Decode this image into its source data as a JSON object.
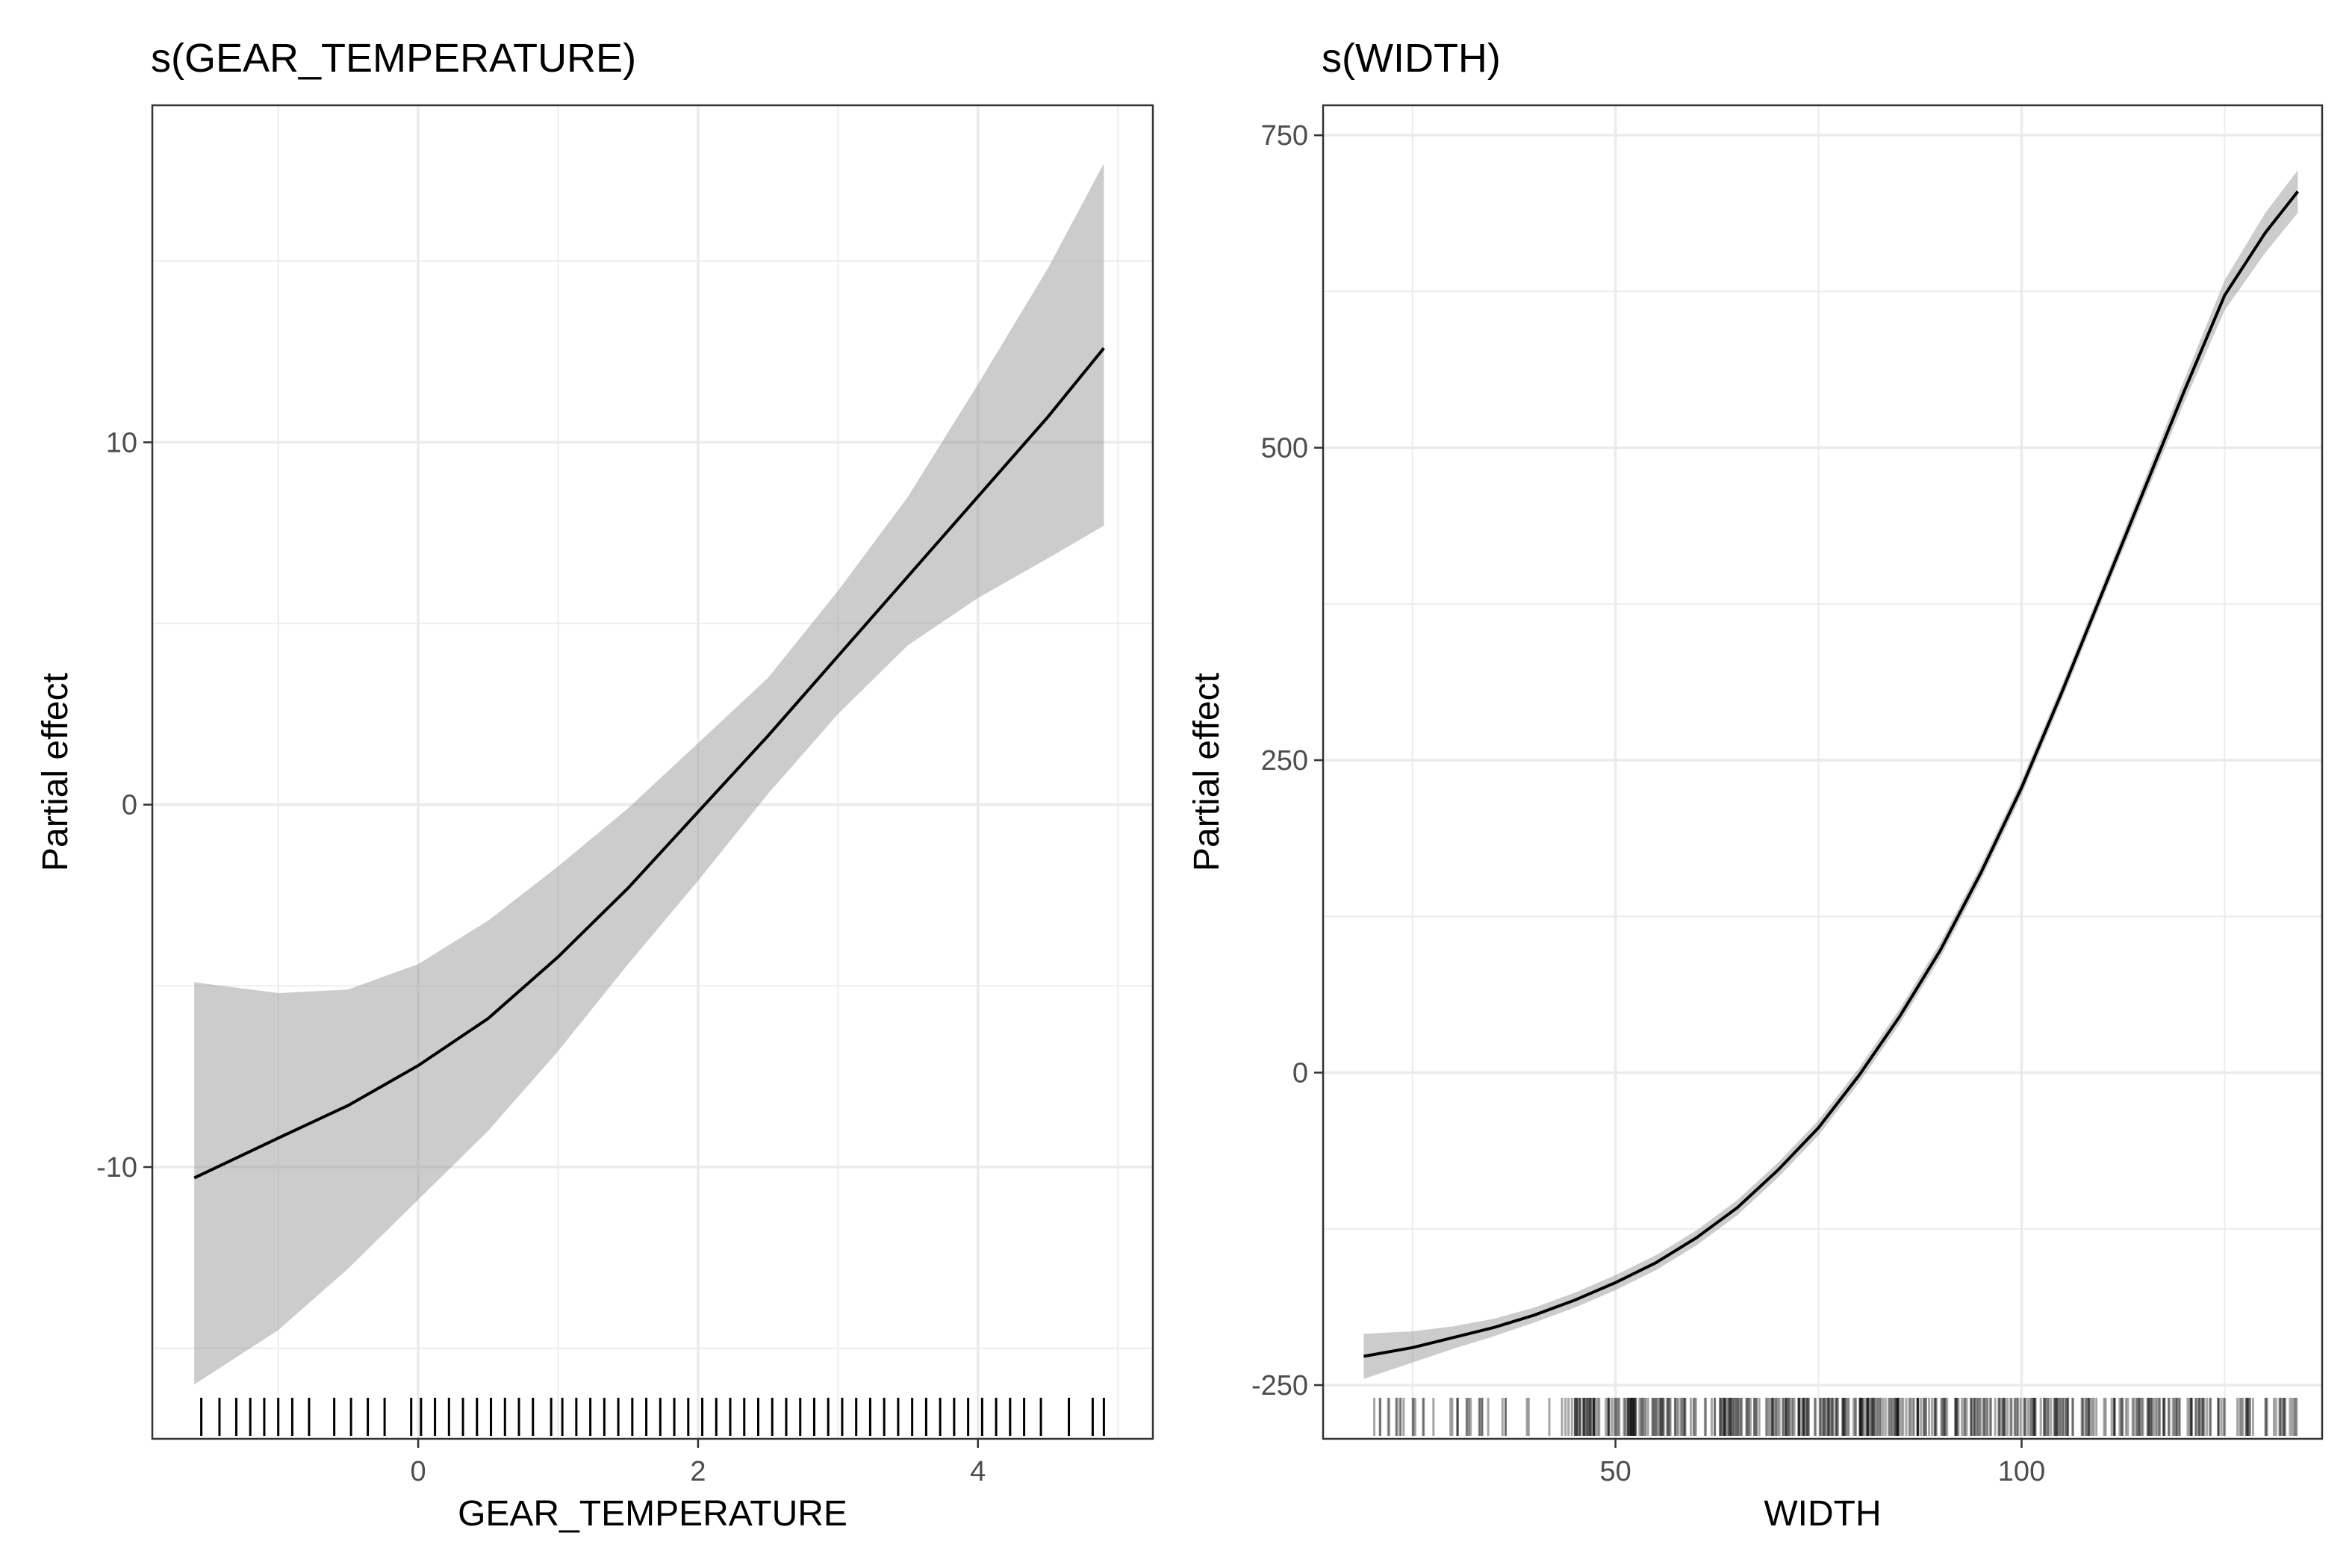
{
  "chart_data": [
    {
      "type": "line",
      "title": "s(GEAR_TEMPERATURE)",
      "xlabel": "GEAR_TEMPERATURE",
      "ylabel": "Partial effect",
      "xlim": [
        -1.9,
        5.25
      ],
      "ylim": [
        -17.5,
        19.3
      ],
      "x_ticks": [
        0,
        2,
        4
      ],
      "x_tick_labels": [
        "0",
        "2",
        "4"
      ],
      "y_ticks": [
        -10,
        0,
        10
      ],
      "y_tick_labels": [
        "-10",
        "0",
        "10"
      ],
      "grid": true,
      "series": [
        {
          "x": [
            -1.6,
            -1.0,
            -0.5,
            0.0,
            0.5,
            1.0,
            1.5,
            2.0,
            2.5,
            3.0,
            3.5,
            4.0,
            4.5,
            4.9
          ],
          "y": [
            -10.3,
            -9.2,
            -8.3,
            -7.2,
            -5.9,
            -4.2,
            -2.3,
            -0.2,
            1.9,
            4.1,
            6.3,
            8.5,
            10.7,
            12.6
          ],
          "lower": [
            -16.0,
            -14.5,
            -12.8,
            -10.9,
            -9.0,
            -6.8,
            -4.4,
            -2.1,
            0.3,
            2.5,
            4.4,
            5.7,
            6.8,
            7.7
          ],
          "upper": [
            -4.9,
            -5.2,
            -5.1,
            -4.4,
            -3.2,
            -1.7,
            -0.1,
            1.7,
            3.5,
            5.9,
            8.5,
            11.6,
            14.8,
            17.7
          ]
        }
      ],
      "rug": [
        -1.55,
        -1.42,
        -1.3,
        -1.2,
        -1.1,
        -1.0,
        -0.9,
        -0.78,
        -0.6,
        -0.48,
        -0.36,
        -0.24,
        -0.05,
        0.02,
        0.12,
        0.22,
        0.32,
        0.42,
        0.52,
        0.62,
        0.72,
        0.82,
        0.95,
        1.03,
        1.13,
        1.23,
        1.33,
        1.43,
        1.53,
        1.63,
        1.73,
        1.83,
        1.93,
        2.03,
        2.13,
        2.23,
        2.33,
        2.43,
        2.53,
        2.63,
        2.73,
        2.83,
        2.93,
        3.03,
        3.13,
        3.23,
        3.33,
        3.43,
        3.53,
        3.63,
        3.73,
        3.83,
        3.93,
        4.03,
        4.13,
        4.23,
        4.33,
        4.45,
        4.65,
        4.82,
        4.9
      ]
    },
    {
      "type": "line",
      "title": "s(WIDTH)",
      "xlabel": "WIDTH",
      "ylabel": "Partial effect",
      "xlim": [
        14,
        137
      ],
      "ylim": [
        -293,
        774
      ],
      "x_ticks": [
        50,
        100
      ],
      "x_tick_labels": [
        "50",
        "100"
      ],
      "y_ticks": [
        -250,
        0,
        250,
        500,
        750
      ],
      "y_tick_labels": [
        "-250",
        "0",
        "250",
        "500",
        "750"
      ],
      "grid": true,
      "series": [
        {
          "x": [
            19,
            25,
            30,
            35,
            40,
            45,
            50,
            55,
            60,
            65,
            70,
            75,
            80,
            85,
            90,
            95,
            100,
            105,
            110,
            115,
            120,
            125,
            130,
            134
          ],
          "y": [
            -227,
            -220,
            -212,
            -204,
            -194,
            -182,
            -168,
            -152,
            -132,
            -108,
            -78,
            -44,
            -2,
            45,
            98,
            160,
            228,
            305,
            385,
            465,
            545,
            622,
            672,
            705
          ],
          "lower": [
            -245,
            -232,
            -221,
            -211,
            -200,
            -188,
            -174,
            -158,
            -138,
            -114,
            -84,
            -50,
            -8,
            39,
            92,
            154,
            222,
            299,
            379,
            458,
            536,
            610,
            656,
            688
          ],
          "upper": [
            -209,
            -207,
            -203,
            -197,
            -188,
            -176,
            -162,
            -146,
            -126,
            -102,
            -72,
            -38,
            4,
            51,
            104,
            166,
            234,
            311,
            391,
            472,
            554,
            634,
            688,
            722
          ]
        }
      ],
      "rug_range": [
        19,
        134
      ],
      "rug_density_peak": [
        45,
        125
      ]
    }
  ]
}
